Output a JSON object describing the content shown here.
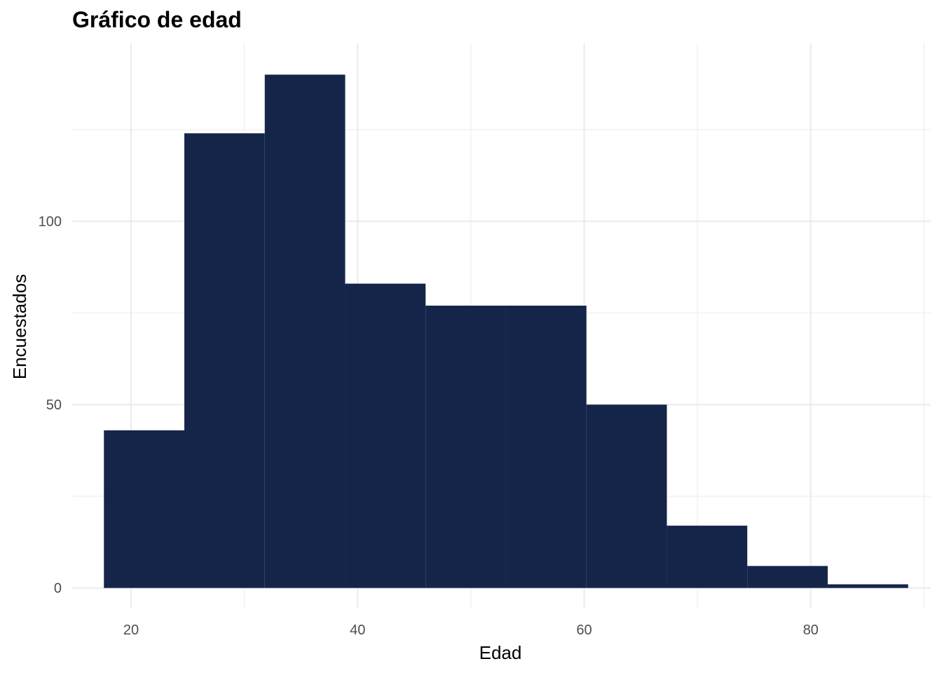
{
  "chart_data": {
    "type": "bar",
    "title": "Gráfico de edad",
    "xlabel": "Edad",
    "ylabel": "Encuestados",
    "bar_color": "#15254a",
    "grid_color": "#ebebeb",
    "grid": true,
    "xlim": [
      14.8,
      90.6
    ],
    "ylim": [
      -5.6,
      148.5
    ],
    "x_ticks": [
      20,
      40,
      60,
      80
    ],
    "x_minor_ticks": [
      30,
      50,
      70,
      90
    ],
    "y_ticks": [
      0,
      50,
      100
    ],
    "y_minor_ticks": [
      25,
      75,
      125
    ],
    "bins": [
      {
        "x0": 17.6,
        "x1": 24.7,
        "count": 43
      },
      {
        "x0": 24.7,
        "x1": 31.8,
        "count": 124
      },
      {
        "x0": 31.8,
        "x1": 38.9,
        "count": 140
      },
      {
        "x0": 38.9,
        "x1": 46.0,
        "count": 83
      },
      {
        "x0": 46.0,
        "x1": 53.1,
        "count": 77
      },
      {
        "x0": 53.1,
        "x1": 60.2,
        "count": 77
      },
      {
        "x0": 60.2,
        "x1": 67.3,
        "count": 50
      },
      {
        "x0": 67.3,
        "x1": 74.4,
        "count": 17
      },
      {
        "x0": 74.4,
        "x1": 81.5,
        "count": 6
      },
      {
        "x0": 81.5,
        "x1": 88.6,
        "count": 1
      }
    ]
  }
}
